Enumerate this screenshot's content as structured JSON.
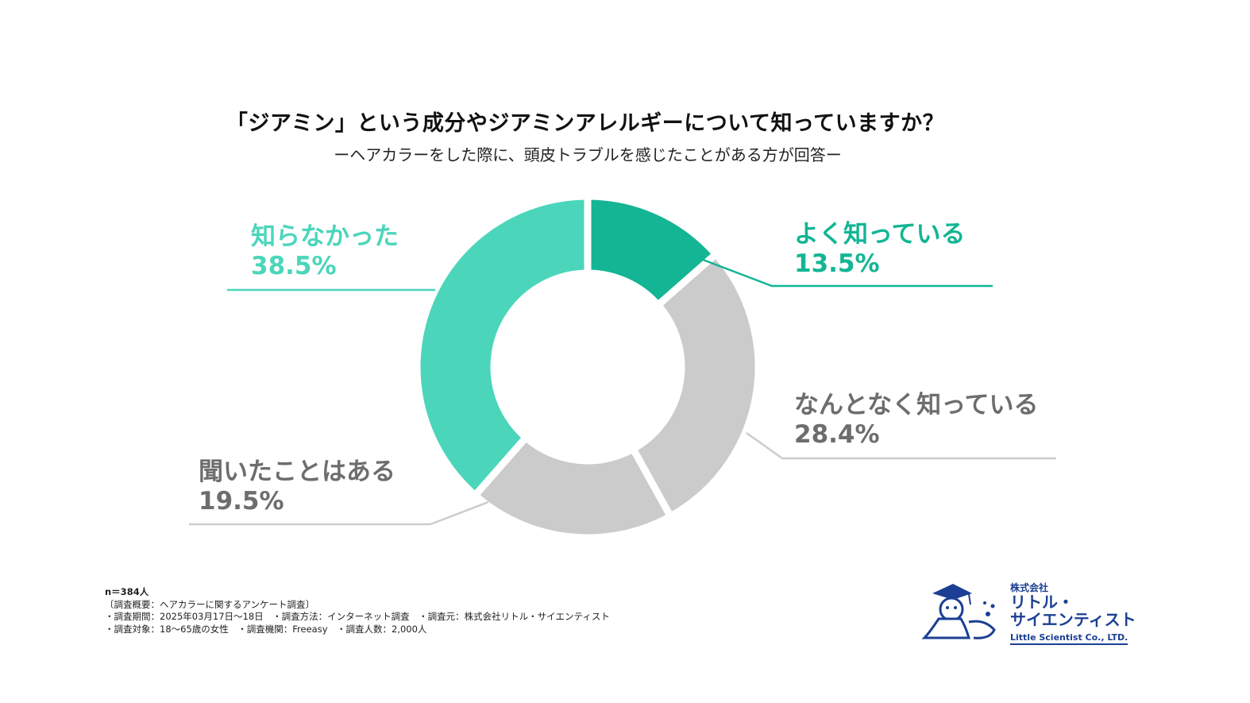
{
  "chart_data": {
    "type": "pie",
    "style": "donut",
    "title": "「ジアミン」という成分やジアミンアレルギーについて知っていますか？",
    "subtitle": "ーヘアカラーをした際に、頭皮トラブルを感じたことがある方が回答ー",
    "slices": [
      {
        "label": "よく知っている",
        "value": 13.5,
        "value_label": "13.5%",
        "color": "#13b594",
        "label_color": "#13b594"
      },
      {
        "label": "なんとなく知っている",
        "value": 28.4,
        "value_label": "28.4%",
        "color": "#cbcbcb",
        "label_color": "#6d6d6d"
      },
      {
        "label": "聞いたことはある",
        "value": 19.5,
        "value_label": "19.5%",
        "color": "#cbcbcb",
        "label_color": "#6d6d6d"
      },
      {
        "label": "知らなかった",
        "value": 38.5,
        "value_label": "38.5%",
        "color": "#4bd6bb",
        "label_color": "#4bd6bb"
      }
    ]
  },
  "notes": {
    "n": "n＝384人",
    "summary": "〔調査概要：ヘアカラーに関するアンケート調査〕",
    "line1": "・調査期間：2025年03月17日〜18日　・調査方法：インターネット調査　・調査元：株式会社リトル・サイエンティスト",
    "line2": "・調査対象：18〜65歳の女性　・調査機関：Freeasy　・調査人数：2,000人"
  },
  "logo": {
    "company": "株式会社",
    "name1": "リトル・",
    "name2": "サイエンティスト",
    "english": "Little Scientist Co., LTD."
  }
}
